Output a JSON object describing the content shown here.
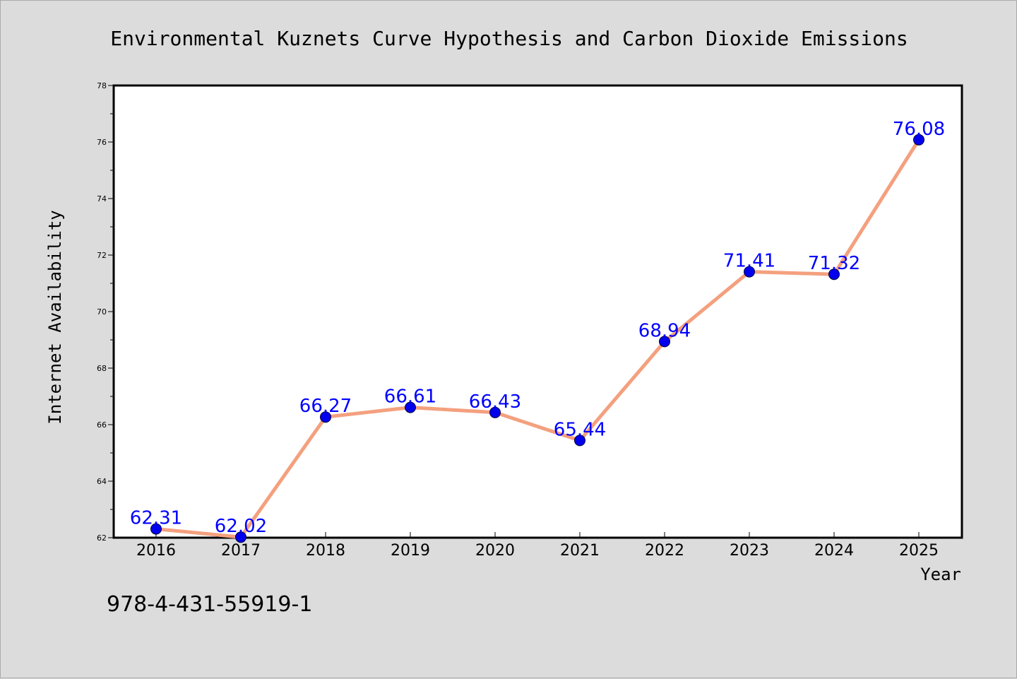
{
  "chart_data": {
    "type": "line",
    "title": "Environmental Kuznets Curve Hypothesis and Carbon Dioxide Emissions",
    "xlabel": "Year",
    "ylabel": "Internet Availability",
    "categories": [
      "2016",
      "2017",
      "2018",
      "2019",
      "2020",
      "2021",
      "2022",
      "2023",
      "2024",
      "2025"
    ],
    "values": [
      62.31,
      62.02,
      66.27,
      66.61,
      66.43,
      65.44,
      68.94,
      71.41,
      71.32,
      76.08
    ],
    "value_labels": [
      "62.31",
      "62.02",
      "66.27",
      "66.61",
      "66.43",
      "65.44",
      "68.94",
      "71.41",
      "71.32",
      "76.08"
    ],
    "ylim": [
      62,
      78
    ],
    "yticks": [
      "62",
      "64",
      "66",
      "68",
      "70",
      "72",
      "74",
      "76",
      "78"
    ],
    "grid": false,
    "legend": "none",
    "colors": {
      "line": "#f4a07e",
      "marker": "#0000ee",
      "value_label": "#0000ff",
      "background": "#dcdcdc",
      "plot_background": "#ffffff"
    }
  },
  "footer_text": "978-4-431-55919-1"
}
